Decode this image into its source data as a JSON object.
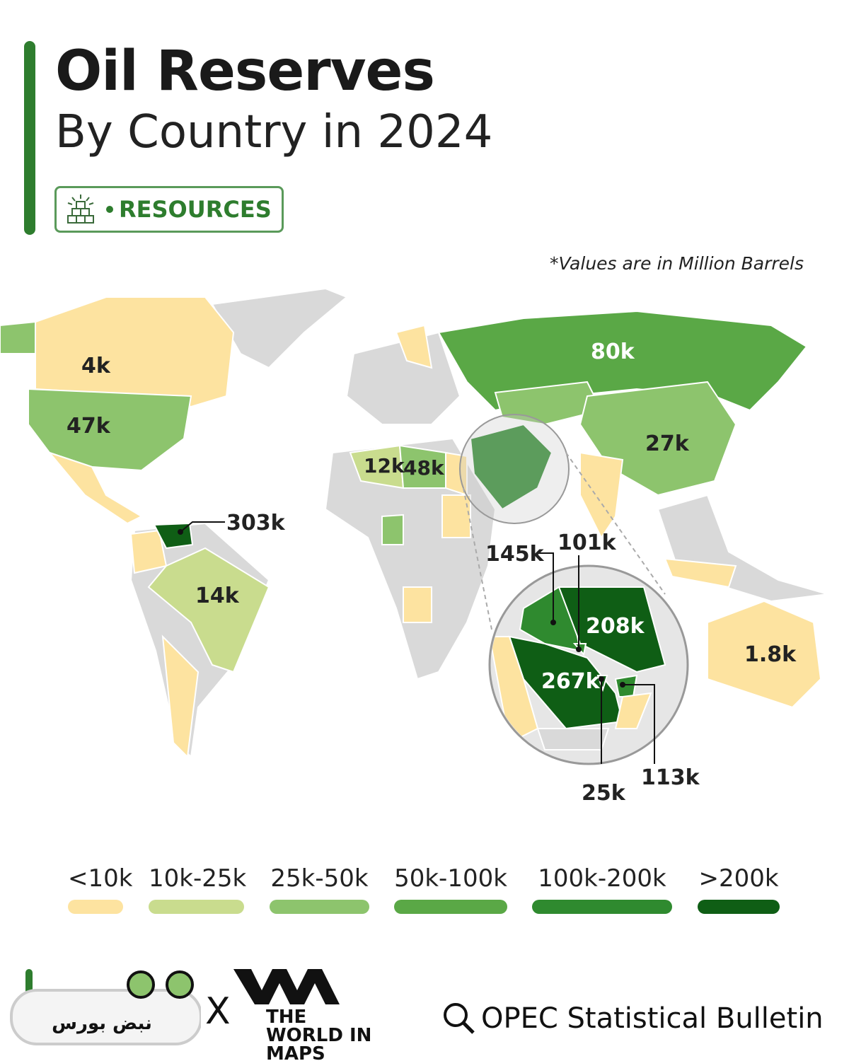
{
  "header": {
    "title": "Oil Reserves",
    "subtitle": "By Country in 2024",
    "badge": "RESOURCES",
    "badge_icon": "gold-bars-icon"
  },
  "note": "*Values are in Million Barrels",
  "colors": {
    "lt10k": "#fde3a0",
    "10k-25k": "#c9dc8e",
    "25k-50k": "#8dc46d",
    "50k-100k": "#5aa846",
    "100k-200k": "#2f8a2f",
    "gt200k": "#0f5e15",
    "no_data": "#d9d9d9",
    "accent": "#2e7d2e"
  },
  "map_labels": {
    "canada": "4k",
    "usa": "47k",
    "venezuela": "303k",
    "brazil": "14k",
    "algeria": "12k",
    "libya": "48k",
    "russia": "80k",
    "china": "27k",
    "australia": "1.8k",
    "iraq": "145k",
    "kuwait": "101k",
    "iran": "208k",
    "saudi_arabia": "267k",
    "qatar": "25k",
    "uae": "113k"
  },
  "legend": [
    {
      "label": "<10k",
      "color": "#fde3a0"
    },
    {
      "label": "10k-25k",
      "color": "#c9dc8e"
    },
    {
      "label": "25k-50k",
      "color": "#8dc46d"
    },
    {
      "label": "50k-100k",
      "color": "#5aa846"
    },
    {
      "label": "100k-200k",
      "color": "#2f8a2f"
    },
    {
      "label": ">200k",
      "color": "#0f5e15"
    }
  ],
  "footer": {
    "partner_logo": "THE WORLD IN MAPS",
    "separator": "X",
    "source": "OPEC Statistical Bulletin",
    "source_icon": "search-icon",
    "watermark": "نبض بورس"
  }
}
